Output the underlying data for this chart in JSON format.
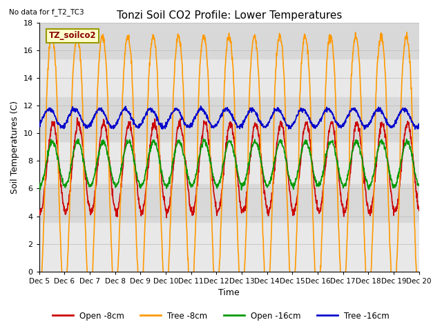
{
  "title": "Tonzi Soil CO2 Profile: Lower Temperatures",
  "subtitle": "No data for f_T2_TC3",
  "xlabel": "Time",
  "ylabel": "Soil Temperatures (C)",
  "ylim": [
    0,
    18
  ],
  "yticks": [
    0,
    2,
    4,
    6,
    8,
    10,
    12,
    14,
    16,
    18
  ],
  "xtick_labels": [
    "Dec 5",
    "Dec 6",
    "Dec 7",
    "Dec 8",
    "Dec 9",
    "Dec 10",
    "Dec 11",
    "Dec 12",
    "Dec 13",
    "Dec 14",
    "Dec 15",
    "Dec 16",
    "Dec 17",
    "Dec 18",
    "Dec 19",
    "Dec 20"
  ],
  "legend_labels": [
    "Open -8cm",
    "Tree -8cm",
    "Open -16cm",
    "Tree -16cm"
  ],
  "legend_colors": [
    "#cc0000",
    "#ff9900",
    "#009900",
    "#0000cc"
  ],
  "inset_label": "TZ_soilco2",
  "inset_bg": "#ffffcc",
  "inset_border": "#cc9900",
  "bg_bands": [
    {
      "ymin": 3.6,
      "ymax": 6.3,
      "color": "#d8d8d8"
    },
    {
      "ymin": 9.4,
      "ymax": 12.6,
      "color": "#d8d8d8"
    },
    {
      "ymin": 15.4,
      "ymax": 18.0,
      "color": "#d8d8d8"
    }
  ],
  "n_days": 15,
  "pts_per_day": 96,
  "bg_color": "#ffffff",
  "plot_bg_color": "#e8e8e8",
  "line_width": 1.2
}
